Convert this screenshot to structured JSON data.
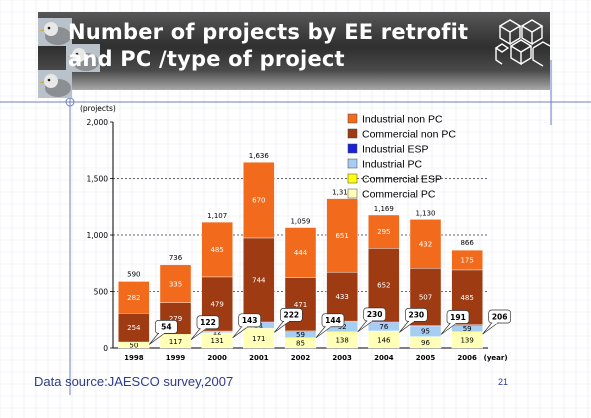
{
  "slide": {
    "title_line1": "Number of projects by EE retrofit",
    "title_line2": "and PC /type of project",
    "source": "Data source:JAESCO survey,2007",
    "page_number": "21"
  },
  "colors": {
    "industrial_non_pc": "#f26b1d",
    "commercial_non_pc": "#9e3b12",
    "industrial_esp": "#1a22d8",
    "industrial_pc": "#a6cdf2",
    "commercial_esp": "#ffff10",
    "commercial_pc": "#ffffb8"
  },
  "chart_data": {
    "type": "bar",
    "stacked": true,
    "ylabel": "(projects)",
    "xlabel": "(year)",
    "ylim": [
      0,
      2000
    ],
    "yticks": [
      0,
      500,
      1000,
      1500,
      2000
    ],
    "ytick_labels": [
      "0",
      "500",
      "1,000",
      "1,500",
      "2,000"
    ],
    "grid": "dashed horizontal at 500, 1000, 1500",
    "legend_position": "top-right",
    "categories": [
      "1998",
      "1999",
      "2000",
      "2001",
      "2002",
      "2003",
      "2004",
      "2005",
      "2006"
    ],
    "series": [
      {
        "name": "Commercial PC",
        "color_key": "commercial_pc",
        "values": [
          50,
          117,
          131,
          171,
          85,
          138,
          146,
          96,
          139
        ],
        "labels": [
          "50",
          "117",
          "131",
          "171",
          "85",
          "138",
          "146",
          "96",
          "139"
        ]
      },
      {
        "name": "Commercial ESP",
        "color_key": "commercial_esp",
        "values": [
          3,
          5,
          5,
          5,
          5,
          5,
          5,
          5,
          5
        ],
        "labels": [
          "",
          "",
          "",
          "",
          "",
          "",
          "",
          "",
          ""
        ]
      },
      {
        "name": "Industrial PC",
        "color_key": "industrial_pc",
        "values": [
          0,
          0,
          12,
          51,
          59,
          92,
          76,
          95,
          59
        ],
        "labels": [
          "",
          "",
          "12",
          "51",
          "59",
          "92",
          "76",
          "95",
          "59"
        ]
      },
      {
        "name": "Industrial ESP",
        "color_key": "industrial_esp",
        "values": [
          0,
          0,
          2,
          3,
          2,
          3,
          3,
          3,
          3
        ],
        "labels": [
          "",
          "",
          "",
          "",
          "",
          "",
          "",
          "",
          ""
        ]
      },
      {
        "name": "Commercial non PC",
        "color_key": "commercial_non_pc",
        "values": [
          254,
          279,
          479,
          744,
          471,
          433,
          652,
          507,
          485
        ],
        "labels": [
          "254",
          "279",
          "479",
          "744",
          "471",
          "433",
          "652",
          "507",
          "485"
        ]
      },
      {
        "name": "Industrial non PC",
        "color_key": "industrial_non_pc",
        "values": [
          282,
          335,
          485,
          670,
          444,
          651,
          295,
          432,
          175
        ],
        "labels": [
          "282",
          "335",
          "485",
          "670",
          "444",
          "651",
          "295",
          "432",
          "175"
        ]
      }
    ],
    "legend_order": [
      "Industrial non PC",
      "Commercial non PC",
      "Industrial ESP",
      "Industrial PC",
      "Commercial ESP",
      "Commercial PC"
    ],
    "totals": [
      590,
      736,
      1107,
      1636,
      1059,
      1314,
      1169,
      1130,
      866
    ],
    "total_labels": [
      "590",
      "736",
      "1,107",
      "1,636",
      "1,059",
      "1,314",
      "1,169",
      "1,130",
      "866"
    ],
    "callouts": [
      {
        "year": "1998",
        "label": "54"
      },
      {
        "year": "1999",
        "label": "122"
      },
      {
        "year": "2000",
        "label": "143"
      },
      {
        "year": "2001",
        "label": "222"
      },
      {
        "year": "2002",
        "label": "144"
      },
      {
        "year": "2003",
        "label": "230"
      },
      {
        "year": "2004",
        "label": "230"
      },
      {
        "year": "2005",
        "label": "191"
      },
      {
        "year": "2006",
        "label": "206"
      }
    ]
  }
}
